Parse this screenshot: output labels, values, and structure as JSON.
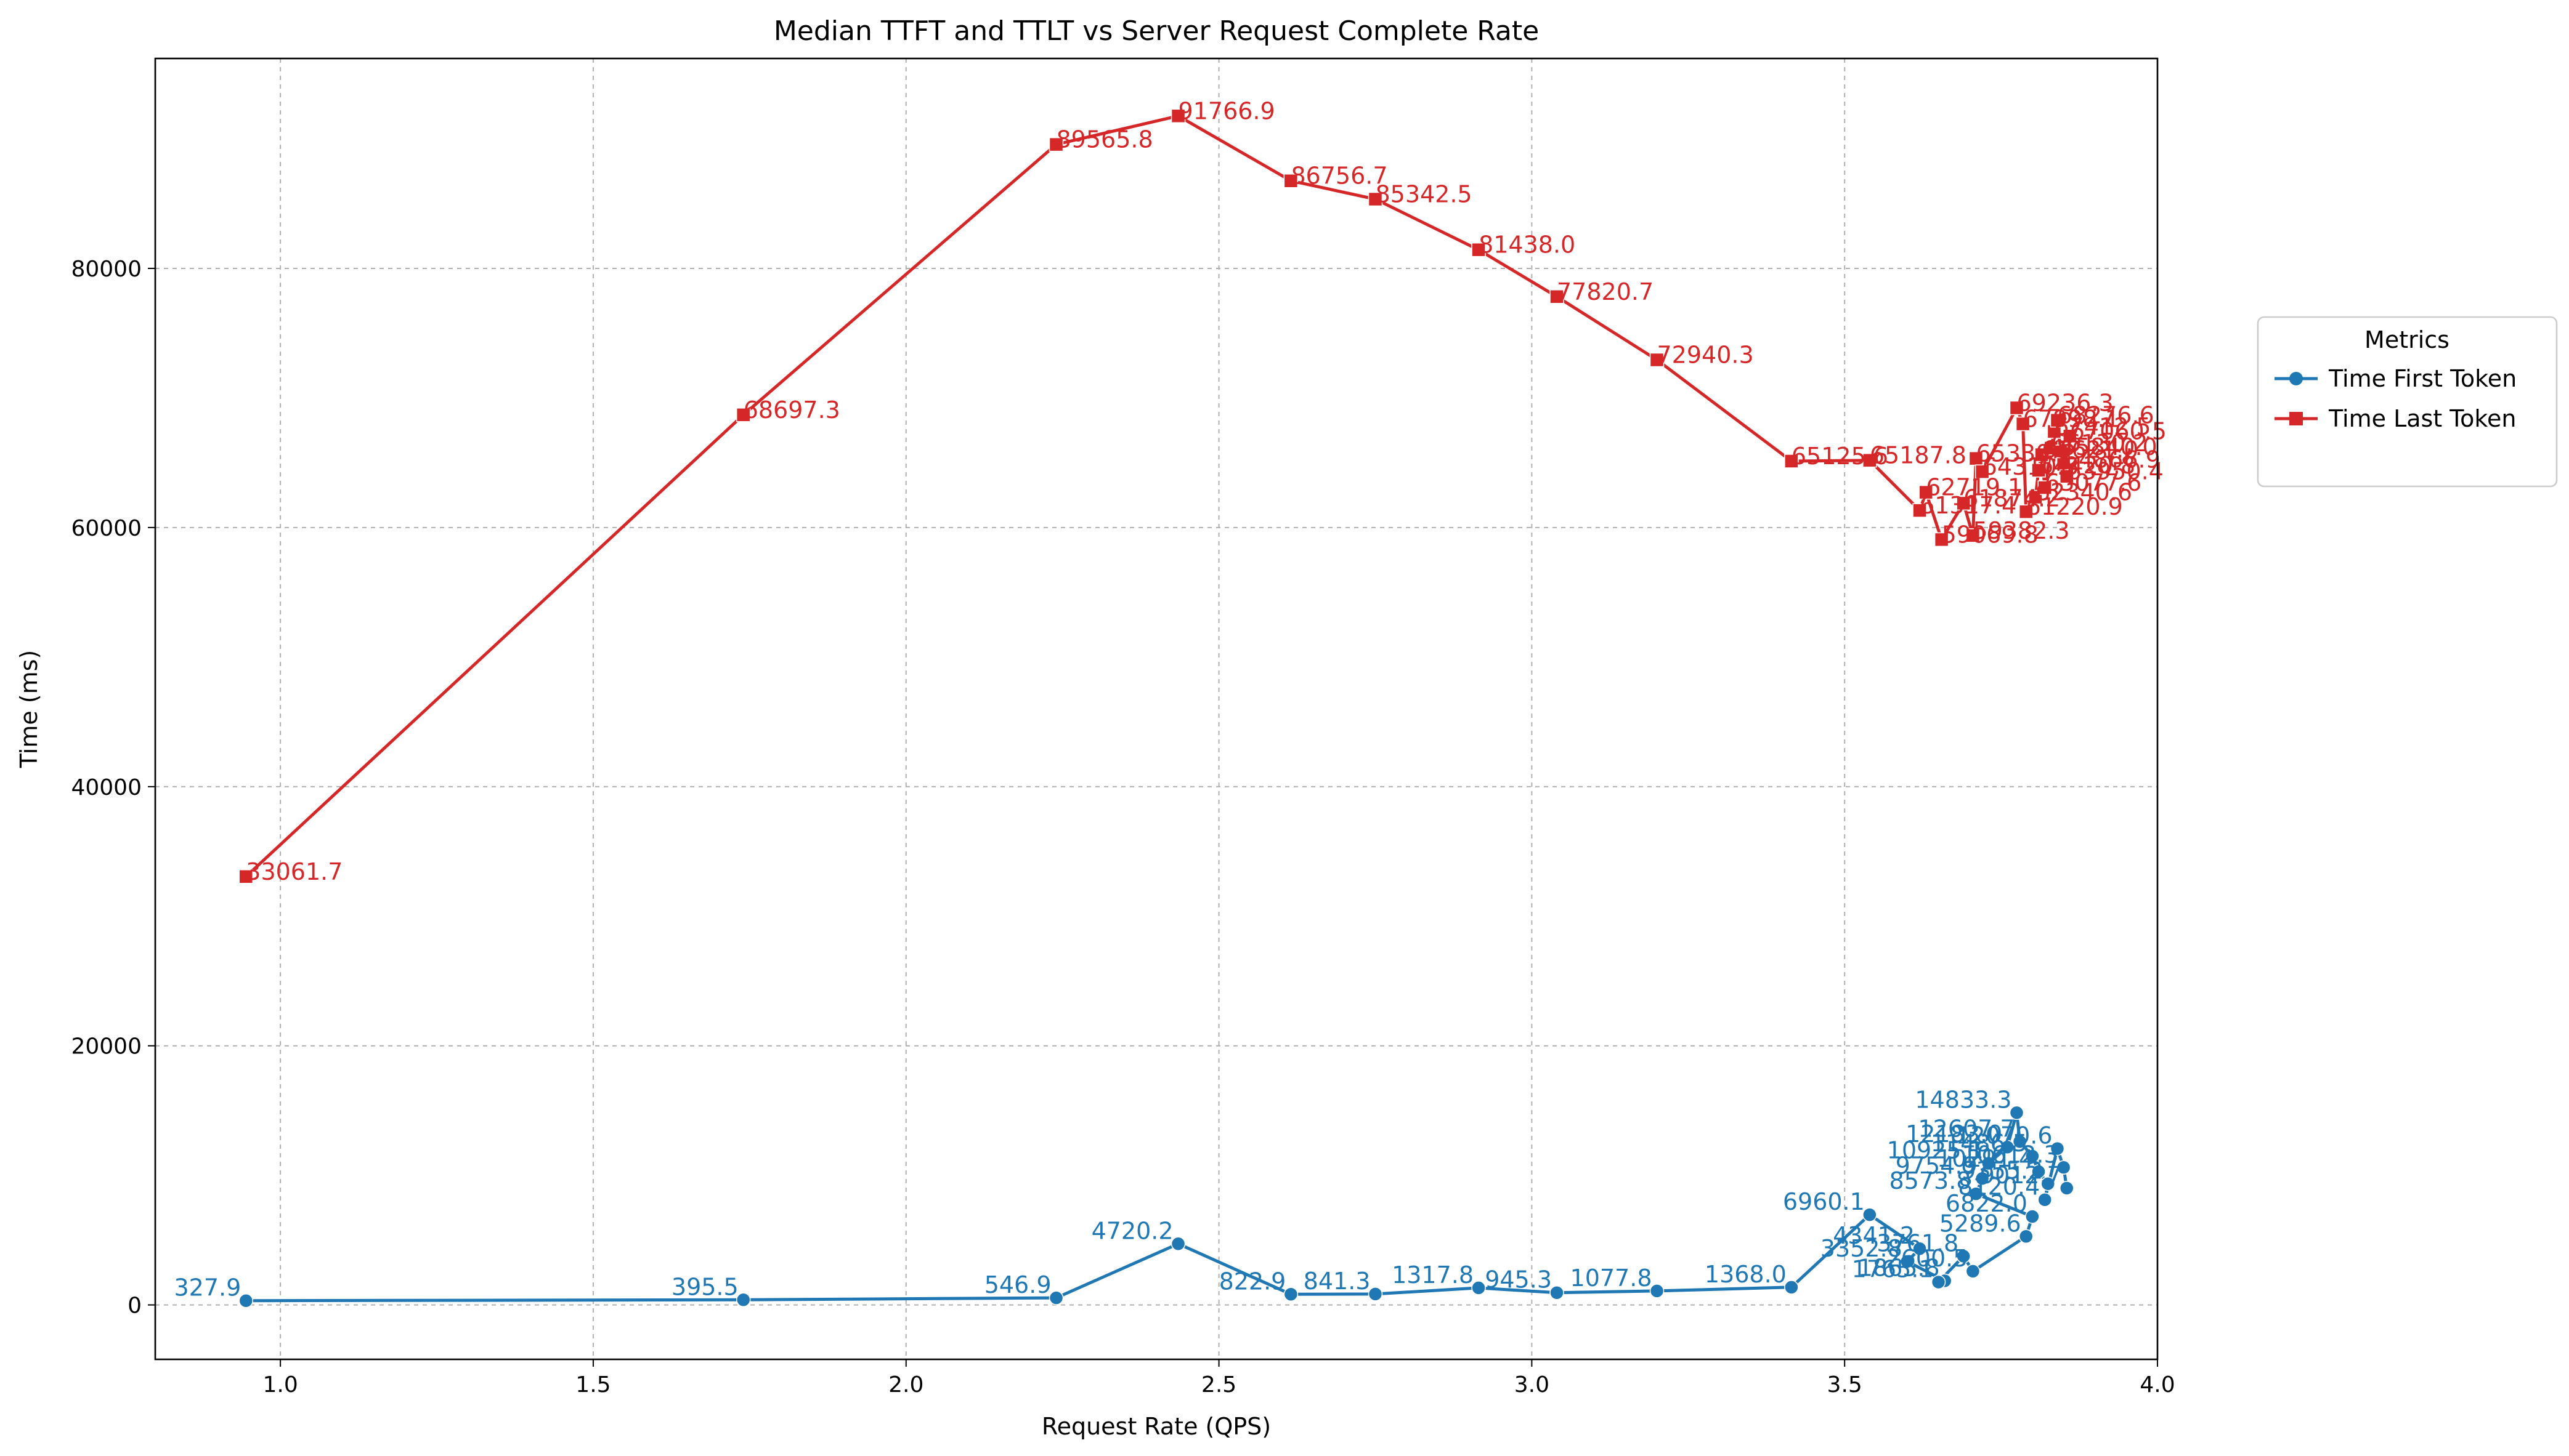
{
  "chart_data": {
    "type": "line",
    "title": "Median TTFT and TTLT vs Server Request Complete Rate",
    "xlabel": "Request Rate (QPS)",
    "ylabel": "Time (ms)",
    "xlim": [
      0.8,
      4.0
    ],
    "ylim": [
      -4200,
      96200
    ],
    "xticks": [
      1.0,
      1.5,
      2.0,
      2.5,
      3.0,
      3.5,
      4.0
    ],
    "xtick_labels": [
      "1.0",
      "1.5",
      "2.0",
      "2.5",
      "3.0",
      "3.5",
      "4.0"
    ],
    "yticks": [
      0,
      20000,
      40000,
      60000,
      80000
    ],
    "ytick_labels": [
      "0",
      "20000",
      "40000",
      "60000",
      "80000"
    ],
    "grid": true,
    "legend": {
      "title": "Metrics",
      "placement": "outside-right-top"
    },
    "series": [
      {
        "name": "Time First Token",
        "color": "#1f77b4",
        "marker": "circle",
        "points": [
          {
            "x": 0.945,
            "y": 327.9,
            "label": "327.9"
          },
          {
            "x": 1.74,
            "y": 395.5,
            "label": "395.5"
          },
          {
            "x": 2.24,
            "y": 546.9,
            "label": "546.9"
          },
          {
            "x": 2.435,
            "y": 4720.2,
            "label": "4720.2"
          },
          {
            "x": 2.615,
            "y": 822.9,
            "label": "822.9"
          },
          {
            "x": 2.75,
            "y": 841.3,
            "label": "841.3"
          },
          {
            "x": 2.915,
            "y": 1317.8,
            "label": "1317.8"
          },
          {
            "x": 3.04,
            "y": 945.3,
            "label": "945.3"
          },
          {
            "x": 3.2,
            "y": 1077.8,
            "label": "1077.8"
          },
          {
            "x": 3.415,
            "y": 1368.0,
            "label": "1368.0"
          },
          {
            "x": 3.54,
            "y": 6960.1,
            "label": "6960.1"
          },
          {
            "x": 3.62,
            "y": 4341.2,
            "label": "4341.2"
          },
          {
            "x": 3.6,
            "y": 3352.8,
            "label": "3352.8"
          },
          {
            "x": 3.66,
            "y": 1865.8,
            "label": "1865.8"
          },
          {
            "x": 3.65,
            "y": 1765.1,
            "label": "1765.1"
          },
          {
            "x": 3.69,
            "y": 3761.8,
            "label": "3761.8"
          },
          {
            "x": 3.705,
            "y": 2600.5,
            "label": "2600.5"
          },
          {
            "x": 3.79,
            "y": 5289.6,
            "label": "5289.6"
          },
          {
            "x": 3.8,
            "y": 6822.0,
            "label": "6822.0"
          },
          {
            "x": 3.71,
            "y": 8573.8,
            "label": "8573.8"
          },
          {
            "x": 3.72,
            "y": 9754.9,
            "label": "9754.9"
          },
          {
            "x": 3.73,
            "y": 10925.1,
            "label": "10925.1"
          },
          {
            "x": 3.76,
            "y": 12183.0,
            "label": "12183.0"
          },
          {
            "x": 3.775,
            "y": 14833.3,
            "label": "14833.3"
          },
          {
            "x": 3.78,
            "y": 12607.7,
            "label": "12607.7"
          },
          {
            "x": 3.8,
            "y": 11486.5,
            "label": "11486.5"
          },
          {
            "x": 3.81,
            "y": 10291.4,
            "label": "10291.4"
          },
          {
            "x": 3.825,
            "y": 9355.2,
            "label": "9355.2"
          },
          {
            "x": 3.82,
            "y": 8120.4,
            "label": "8120.4"
          },
          {
            "x": 3.84,
            "y": 12070.6,
            "label": "12070.6"
          },
          {
            "x": 3.85,
            "y": 10612.3,
            "label": "10612.3"
          },
          {
            "x": 3.855,
            "y": 9012.7,
            "label": "9012.7"
          }
        ]
      },
      {
        "name": "Time Last Token",
        "color": "#d62728",
        "marker": "square",
        "points": [
          {
            "x": 0.945,
            "y": 33061.7,
            "label": "33061.7"
          },
          {
            "x": 1.74,
            "y": 68697.3,
            "label": "68697.3"
          },
          {
            "x": 2.24,
            "y": 89565.8,
            "label": "89565.8"
          },
          {
            "x": 2.435,
            "y": 91766.9,
            "label": "91766.9"
          },
          {
            "x": 2.615,
            "y": 86756.7,
            "label": "86756.7"
          },
          {
            "x": 2.75,
            "y": 85342.5,
            "label": "85342.5"
          },
          {
            "x": 2.915,
            "y": 81438.0,
            "label": "81438.0"
          },
          {
            "x": 3.04,
            "y": 77820.7,
            "label": "77820.7"
          },
          {
            "x": 3.2,
            "y": 72940.3,
            "label": "72940.3"
          },
          {
            "x": 3.415,
            "y": 65125.6,
            "label": "65125.6"
          },
          {
            "x": 3.54,
            "y": 65187.8,
            "label": "65187.8"
          },
          {
            "x": 3.62,
            "y": 61317.4,
            "label": "61317.4"
          },
          {
            "x": 3.63,
            "y": 62719.1,
            "label": "62719.1"
          },
          {
            "x": 3.655,
            "y": 59069.8,
            "label": "59069.8"
          },
          {
            "x": 3.69,
            "y": 61874.2,
            "label": "61874.2"
          },
          {
            "x": 3.705,
            "y": 59382.3,
            "label": "59382.3"
          },
          {
            "x": 3.71,
            "y": 65330.7,
            "label": "65330.7"
          },
          {
            "x": 3.72,
            "y": 64310.5,
            "label": "64310.5"
          },
          {
            "x": 3.775,
            "y": 69236.3,
            "label": "69236.3"
          },
          {
            "x": 3.785,
            "y": 67998.1,
            "label": "67998.1"
          },
          {
            "x": 3.79,
            "y": 61220.9,
            "label": "61220.9"
          },
          {
            "x": 3.805,
            "y": 62340.6,
            "label": "62340.6"
          },
          {
            "x": 3.81,
            "y": 64420.8,
            "label": "64420.8"
          },
          {
            "x": 3.815,
            "y": 65621.0,
            "label": "65621.0"
          },
          {
            "x": 3.82,
            "y": 63077.6,
            "label": "63077.6"
          },
          {
            "x": 3.83,
            "y": 66130.2,
            "label": "66130.2"
          },
          {
            "x": 3.835,
            "y": 67412.5,
            "label": "67412.5"
          },
          {
            "x": 3.84,
            "y": 68276.6,
            "label": "68276.6"
          },
          {
            "x": 3.845,
            "y": 65840.0,
            "label": "65840.0"
          },
          {
            "x": 3.85,
            "y": 64866.9,
            "label": "64866.9"
          },
          {
            "x": 3.855,
            "y": 63950.4,
            "label": "63950.4"
          },
          {
            "x": 3.86,
            "y": 67060.5,
            "label": "67060.5"
          }
        ]
      }
    ]
  }
}
